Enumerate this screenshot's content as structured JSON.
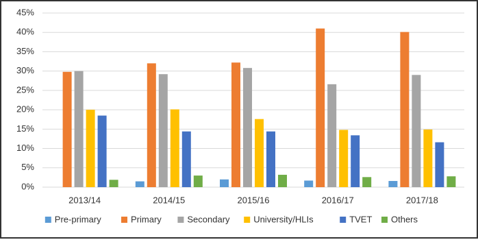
{
  "chart_data": {
    "type": "bar",
    "categories": [
      "2013/14",
      "2014/15",
      "2015/16",
      "2016/17",
      "2017/18"
    ],
    "series": [
      {
        "name": "Pre-primary",
        "color": "#5b9bd5",
        "values": [
          0,
          1.5,
          2.0,
          1.7,
          1.6
        ]
      },
      {
        "name": "Primary",
        "color": "#ed7d31",
        "values": [
          29.8,
          32.0,
          32.2,
          41.0,
          40.1
        ]
      },
      {
        "name": "Secondary",
        "color": "#a5a5a5",
        "values": [
          30.0,
          29.2,
          30.8,
          26.6,
          29.0
        ]
      },
      {
        "name": "University/HLIs",
        "color": "#ffc000",
        "values": [
          20.0,
          20.1,
          17.6,
          14.8,
          14.9
        ]
      },
      {
        "name": "TVET",
        "color": "#4472c4",
        "values": [
          18.5,
          14.4,
          14.4,
          13.4,
          11.6
        ]
      },
      {
        "name": "Others",
        "color": "#70ad47",
        "values": [
          1.9,
          3.0,
          3.2,
          2.6,
          2.8
        ]
      }
    ],
    "ylim": [
      0,
      45
    ],
    "yticks": [
      {
        "value": 0,
        "label": "0%"
      },
      {
        "value": 5,
        "label": "5%"
      },
      {
        "value": 10,
        "label": "10%"
      },
      {
        "value": 15,
        "label": "15%"
      },
      {
        "value": 20,
        "label": "20%"
      },
      {
        "value": 25,
        "label": "25%"
      },
      {
        "value": 30,
        "label": "30%"
      },
      {
        "value": 35,
        "label": "35%"
      },
      {
        "value": 40,
        "label": "40%"
      },
      {
        "value": 45,
        "label": "45%"
      }
    ],
    "grid": true,
    "legend": "bottom"
  }
}
